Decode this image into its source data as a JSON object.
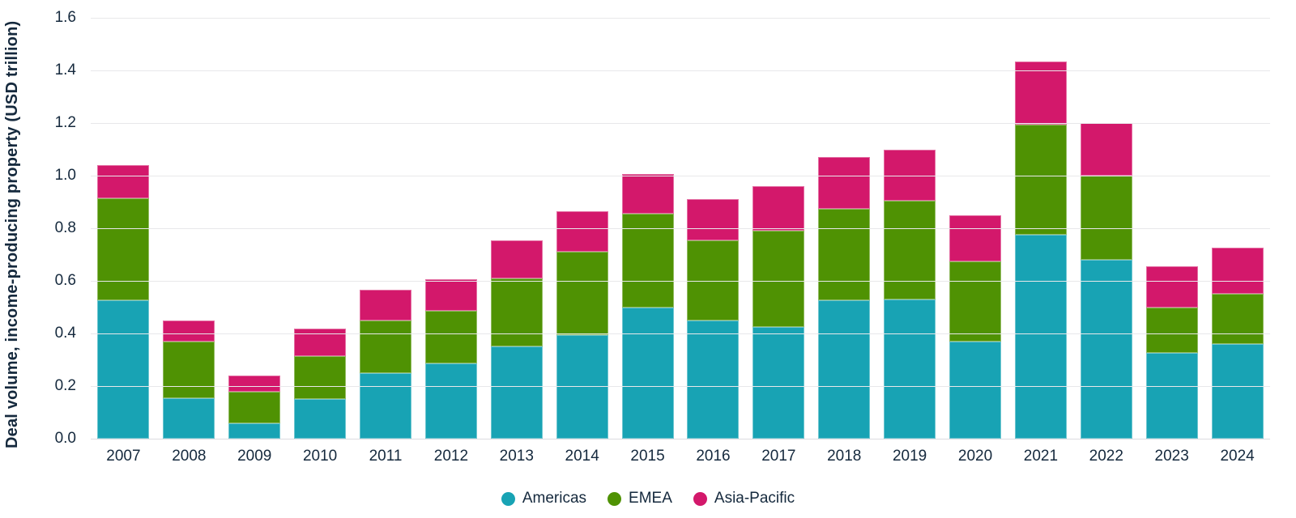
{
  "chart_data": {
    "type": "bar",
    "stacked": true,
    "title": "",
    "xlabel": "",
    "ylabel": "Deal volume, income-producing property (USD trillion)",
    "ylim": [
      0,
      1.6
    ],
    "y_tick_step": 0.2,
    "y_ticks": [
      "0.0",
      "0.2",
      "0.4",
      "0.6",
      "0.8",
      "1.0",
      "1.2",
      "1.4",
      "1.6"
    ],
    "grid": true,
    "legend_position": "bottom",
    "categories": [
      "2007",
      "2008",
      "2009",
      "2010",
      "2011",
      "2012",
      "2013",
      "2014",
      "2015",
      "2016",
      "2017",
      "2018",
      "2019",
      "2020",
      "2021",
      "2022",
      "2023",
      "2024"
    ],
    "series": [
      {
        "name": "Americas",
        "color": "#18a3b4",
        "values": [
          0.525,
          0.155,
          0.06,
          0.15,
          0.25,
          0.285,
          0.35,
          0.395,
          0.5,
          0.45,
          0.425,
          0.525,
          0.53,
          0.37,
          0.775,
          0.68,
          0.325,
          0.36
        ]
      },
      {
        "name": "EMEA",
        "color": "#4f9203",
        "values": [
          0.39,
          0.215,
          0.12,
          0.165,
          0.2,
          0.2,
          0.26,
          0.315,
          0.355,
          0.305,
          0.365,
          0.35,
          0.375,
          0.305,
          0.42,
          0.32,
          0.175,
          0.19
        ]
      },
      {
        "name": "Asia-Pacific",
        "color": "#d3186b",
        "values": [
          0.125,
          0.08,
          0.06,
          0.105,
          0.115,
          0.12,
          0.145,
          0.155,
          0.15,
          0.155,
          0.17,
          0.195,
          0.195,
          0.175,
          0.24,
          0.2,
          0.155,
          0.175
        ]
      }
    ]
  },
  "colors": {
    "text": "#15293d",
    "gridline": "#e8e8ea",
    "zero_line": "#dcdce0",
    "background": "#ffffff"
  }
}
